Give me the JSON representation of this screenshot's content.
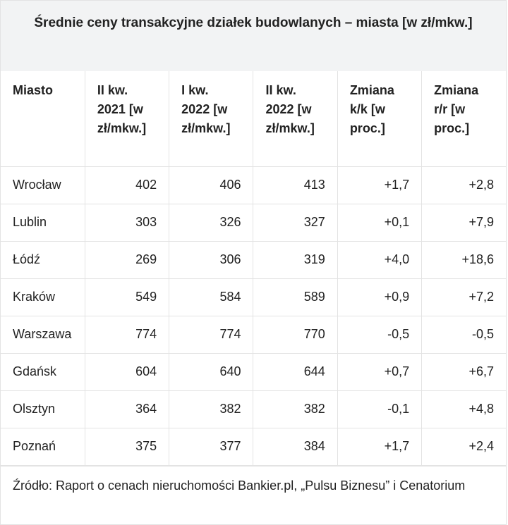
{
  "header": {
    "title": "Średnie ceny transakcyjne działek budowlanych – miasta [w zł/mkw.]"
  },
  "table": {
    "columns": [
      "Miasto",
      "II kw. 2021 [w zł/mkw.]",
      "I kw. 2022 [w zł/mkw.]",
      "II kw. 2022 [w zł/mkw.]",
      "Zmiana k/k [w proc.]",
      "Zmiana r/r [w proc.]"
    ],
    "rows": [
      [
        "Wrocław",
        "402",
        "406",
        "413",
        "+1,7",
        "+2,8"
      ],
      [
        "Lublin",
        "303",
        "326",
        "327",
        "+0,1",
        "+7,9"
      ],
      [
        "Łódź",
        "269",
        "306",
        "319",
        "+4,0",
        "+18,6"
      ],
      [
        "Kraków",
        "549",
        "584",
        "589",
        "+0,9",
        "+7,2"
      ],
      [
        "Warszawa",
        "774",
        "774",
        "770",
        "-0,5",
        "-0,5"
      ],
      [
        "Gdańsk",
        "604",
        "640",
        "644",
        "+0,7",
        "+6,7"
      ],
      [
        "Olsztyn",
        "364",
        "382",
        "382",
        "-0,1",
        "+4,8"
      ],
      [
        "Poznań",
        "375",
        "377",
        "384",
        "+1,7",
        "+2,4"
      ]
    ]
  },
  "footer": {
    "source": "Źródło: Raport o cenach nieruchomości Bankier.pl, „Pulsu Biznesu” i Cenatorium"
  }
}
